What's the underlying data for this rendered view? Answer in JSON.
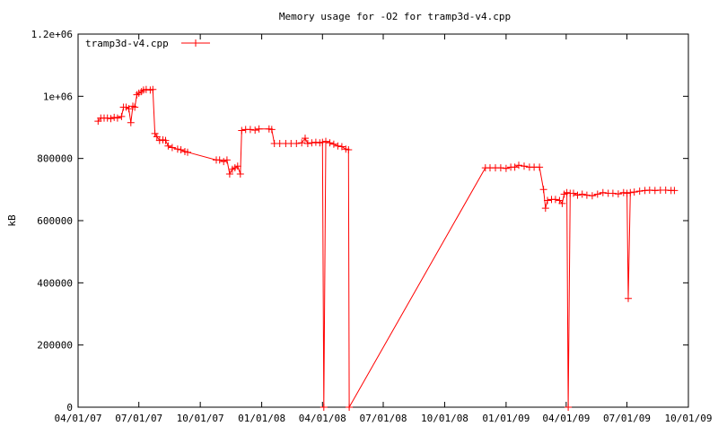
{
  "chart_data": {
    "type": "line",
    "title": "Memory usage for -O2 for tramp3d-v4.cpp",
    "xlabel": "",
    "ylabel": "kB",
    "x_range": [
      "2007-04-01",
      "2009-10-01"
    ],
    "ylim": [
      0,
      1200000
    ],
    "y_ticks": [
      0,
      200000,
      400000,
      600000,
      800000,
      1000000,
      1200000
    ],
    "y_tick_labels": [
      "0",
      "200000",
      "400000",
      "600000",
      "800000",
      "1e+06",
      "1.2e+06"
    ],
    "x_ticks": [
      "2007-04-01",
      "2007-07-01",
      "2007-10-01",
      "2008-01-01",
      "2008-04-01",
      "2008-07-01",
      "2008-10-01",
      "2009-01-01",
      "2009-04-01",
      "2009-07-01",
      "2009-10-01"
    ],
    "x_tick_labels": [
      "04/01/07",
      "07/01/07",
      "10/01/07",
      "01/01/08",
      "04/01/08",
      "07/01/08",
      "10/01/08",
      "01/01/09",
      "04/01/09",
      "07/01/09",
      "10/01/09"
    ],
    "grid": false,
    "legend_position": "top-left",
    "line_color": "#ff0000",
    "series": [
      {
        "name": "tramp3d-v4.cpp",
        "points": [
          [
            "2007-05-01",
            920000
          ],
          [
            "2007-05-05",
            930000
          ],
          [
            "2007-05-10",
            930000
          ],
          [
            "2007-05-15",
            930000
          ],
          [
            "2007-05-20",
            928000
          ],
          [
            "2007-05-25",
            932000
          ],
          [
            "2007-05-30",
            930000
          ],
          [
            "2007-06-05",
            935000
          ],
          [
            "2007-06-08",
            965000
          ],
          [
            "2007-06-12",
            965000
          ],
          [
            "2007-06-16",
            960000
          ],
          [
            "2007-06-19",
            915000
          ],
          [
            "2007-06-22",
            968000
          ],
          [
            "2007-06-25",
            965000
          ],
          [
            "2007-06-28",
            1005000
          ],
          [
            "2007-07-01",
            1010000
          ],
          [
            "2007-07-05",
            1015000
          ],
          [
            "2007-07-08",
            1020000
          ],
          [
            "2007-07-12",
            1022000
          ],
          [
            "2007-07-18",
            1020000
          ],
          [
            "2007-07-22",
            1022000
          ],
          [
            "2007-07-25",
            880000
          ],
          [
            "2007-07-28",
            870000
          ],
          [
            "2007-08-01",
            858000
          ],
          [
            "2007-08-06",
            860000
          ],
          [
            "2007-08-10",
            858000
          ],
          [
            "2007-08-14",
            840000
          ],
          [
            "2007-08-20",
            835000
          ],
          [
            "2007-08-28",
            830000
          ],
          [
            "2007-09-02",
            828000
          ],
          [
            "2007-09-08",
            822000
          ],
          [
            "2007-09-12",
            820000
          ],
          [
            "2007-10-25",
            795000
          ],
          [
            "2007-10-30",
            795000
          ],
          [
            "2007-11-05",
            790000
          ],
          [
            "2007-11-10",
            795000
          ],
          [
            "2007-11-14",
            750000
          ],
          [
            "2007-11-18",
            765000
          ],
          [
            "2007-11-22",
            770000
          ],
          [
            "2007-11-26",
            775000
          ],
          [
            "2007-11-30",
            750000
          ],
          [
            "2007-12-02",
            890000
          ],
          [
            "2007-12-08",
            893000
          ],
          [
            "2007-12-15",
            893000
          ],
          [
            "2007-12-22",
            891000
          ],
          [
            "2007-12-28",
            895000
          ],
          [
            "2008-01-12",
            895000
          ],
          [
            "2008-01-16",
            893000
          ],
          [
            "2008-01-20",
            848000
          ],
          [
            "2008-01-28",
            848000
          ],
          [
            "2008-02-06",
            848000
          ],
          [
            "2008-02-14",
            848000
          ],
          [
            "2008-02-22",
            848000
          ],
          [
            "2008-03-01",
            850000
          ],
          [
            "2008-03-06",
            865000
          ],
          [
            "2008-03-10",
            848000
          ],
          [
            "2008-03-16",
            850000
          ],
          [
            "2008-03-22",
            852000
          ],
          [
            "2008-03-28",
            850000
          ],
          [
            "2008-04-01",
            852000
          ],
          [
            "2008-04-03",
            0
          ],
          [
            "2008-04-06",
            855000
          ],
          [
            "2008-04-12",
            850000
          ],
          [
            "2008-04-18",
            846000
          ],
          [
            "2008-04-24",
            840000
          ],
          [
            "2008-04-30",
            838000
          ],
          [
            "2008-05-06",
            830000
          ],
          [
            "2008-05-10",
            828000
          ],
          [
            "2008-05-11",
            0
          ],
          [
            "2008-12-01",
            770000
          ],
          [
            "2008-12-08",
            770000
          ],
          [
            "2008-12-16",
            770000
          ],
          [
            "2008-12-24",
            770000
          ],
          [
            "2009-01-01",
            768000
          ],
          [
            "2009-01-08",
            772000
          ],
          [
            "2009-01-14",
            772000
          ],
          [
            "2009-01-20",
            778000
          ],
          [
            "2009-01-28",
            775000
          ],
          [
            "2009-02-05",
            772000
          ],
          [
            "2009-02-12",
            772000
          ],
          [
            "2009-02-20",
            772000
          ],
          [
            "2009-02-26",
            700000
          ],
          [
            "2009-03-01",
            640000
          ],
          [
            "2009-03-04",
            665000
          ],
          [
            "2009-03-10",
            668000
          ],
          [
            "2009-03-16",
            668000
          ],
          [
            "2009-03-22",
            665000
          ],
          [
            "2009-03-26",
            655000
          ],
          [
            "2009-03-29",
            685000
          ],
          [
            "2009-04-02",
            690000
          ],
          [
            "2009-04-04",
            0
          ],
          [
            "2009-04-07",
            688000
          ],
          [
            "2009-04-12",
            688000
          ],
          [
            "2009-04-18",
            682000
          ],
          [
            "2009-04-25",
            685000
          ],
          [
            "2009-05-02",
            682000
          ],
          [
            "2009-05-10",
            680000
          ],
          [
            "2009-05-18",
            685000
          ],
          [
            "2009-05-26",
            690000
          ],
          [
            "2009-06-03",
            688000
          ],
          [
            "2009-06-10",
            688000
          ],
          [
            "2009-06-18",
            686000
          ],
          [
            "2009-06-26",
            690000
          ],
          [
            "2009-07-01",
            688000
          ],
          [
            "2009-07-03",
            350000
          ],
          [
            "2009-07-06",
            690000
          ],
          [
            "2009-07-12",
            692000
          ],
          [
            "2009-07-20",
            695000
          ],
          [
            "2009-07-28",
            697000
          ],
          [
            "2009-08-04",
            698000
          ],
          [
            "2009-08-12",
            697000
          ],
          [
            "2009-08-20",
            698000
          ],
          [
            "2009-08-28",
            698000
          ],
          [
            "2009-09-05",
            697000
          ],
          [
            "2009-09-10",
            697000
          ]
        ]
      }
    ]
  }
}
